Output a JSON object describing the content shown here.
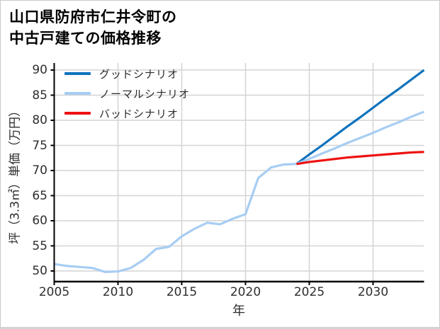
{
  "page": {
    "title_line1": "山口県防府市仁井令町の",
    "title_line2": "中古戸建ての価格推移"
  },
  "chart_data": {
    "type": "line",
    "title": "山口県防府市仁井令町の中古戸建ての価格推移",
    "xlabel": "年",
    "ylabel": "坪（3.3㎡）単価（万円）",
    "xlim": [
      2005,
      2034
    ],
    "ylim": [
      47.9,
      91.4
    ],
    "xticks": [
      2005,
      2010,
      2015,
      2020,
      2025,
      2030
    ],
    "yticks": [
      50,
      55,
      60,
      65,
      70,
      75,
      80,
      85,
      90
    ],
    "grid": true,
    "legend_position": "upper-left",
    "colors": {
      "good": "#0e72bd",
      "normal": "#a7cdf3",
      "bad": "#ee1111",
      "grid": "#d4d4d4",
      "axis": "#000000",
      "tick_text": "#2e2e2e"
    },
    "series": [
      {
        "id": "history",
        "legend": false,
        "color": "#a7cdf3",
        "x": [
          2005,
          2006,
          2007,
          2008,
          2009,
          2010,
          2011,
          2012,
          2013,
          2014,
          2015,
          2016,
          2017,
          2018,
          2019,
          2020,
          2021,
          2022,
          2023,
          2024
        ],
        "values": [
          51.4,
          51.0,
          50.8,
          50.6,
          49.8,
          49.9,
          50.6,
          52.2,
          54.4,
          54.8,
          56.9,
          58.4,
          59.6,
          59.3,
          60.4,
          61.3,
          68.5,
          70.6,
          71.2,
          71.3
        ]
      },
      {
        "id": "good",
        "name": "グッドシナリオ",
        "legend": true,
        "color": "#0e72bd",
        "x": [
          2024,
          2025,
          2026,
          2027,
          2028,
          2029,
          2030,
          2031,
          2032,
          2033,
          2034
        ],
        "values": [
          71.3,
          73.2,
          75.0,
          76.9,
          78.8,
          80.6,
          82.5,
          84.4,
          86.2,
          88.1,
          90.0
        ]
      },
      {
        "id": "normal",
        "name": "ノーマルシナリオ",
        "legend": true,
        "color": "#a7cdf3",
        "x": [
          2024,
          2025,
          2026,
          2027,
          2028,
          2029,
          2030,
          2031,
          2032,
          2033,
          2034
        ],
        "values": [
          71.3,
          72.3,
          73.4,
          74.4,
          75.5,
          76.5,
          77.5,
          78.6,
          79.6,
          80.7,
          81.7
        ]
      },
      {
        "id": "bad",
        "name": "バッドシナリオ",
        "legend": true,
        "color": "#ee1111",
        "x": [
          2024,
          2025,
          2026,
          2027,
          2028,
          2029,
          2030,
          2031,
          2032,
          2033,
          2034
        ],
        "values": [
          71.3,
          71.7,
          72.0,
          72.3,
          72.6,
          72.8,
          73.0,
          73.2,
          73.4,
          73.6,
          73.7
        ]
      }
    ]
  }
}
